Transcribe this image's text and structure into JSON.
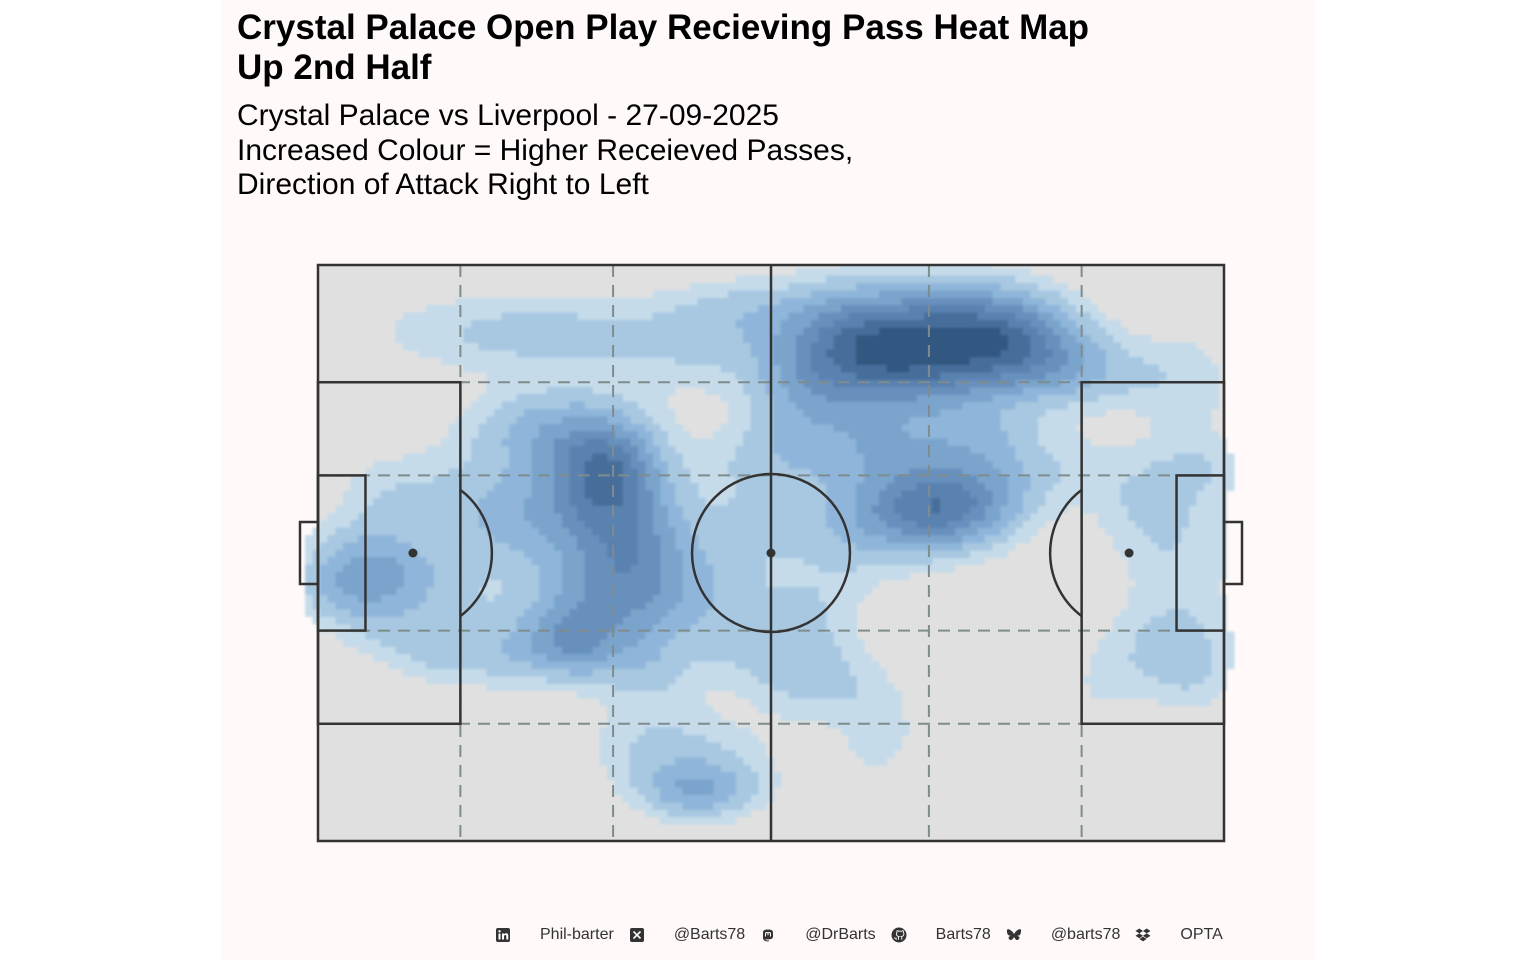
{
  "header": {
    "title_lines": [
      "Crystal Palace Open Play Recieving Pass Heat Map",
      "Up 2nd Half"
    ],
    "subtitle_lines": [
      "Crystal Palace vs Liverpool - 27-09-2025",
      "Increased Colour = Higher Receieved Passes,",
      "Direction of Attack Right to Left"
    ]
  },
  "colors": {
    "panel_background": "#fff9f9",
    "pitch_fill": "#e0e0e0",
    "pitch_lines": "#333333",
    "zone_lines": "#7f8c8d",
    "density_levels": [
      "#c5dbea",
      "#a8c8e1",
      "#8fb6da",
      "#7aa4cc",
      "#6790bd",
      "#5a82b0",
      "#476e9b",
      "#305882"
    ]
  },
  "chart_data": {
    "type": "heatmap",
    "subtype": "2d-density-contour",
    "pitch": "football",
    "x_range": [
      0,
      105
    ],
    "y_range": [
      0,
      68
    ],
    "zones": "juego-de-posicion dashed grid",
    "direction_of_attack": "right-to-left",
    "density_peaks": [
      {
        "x": 69,
        "y": 58,
        "level": 8
      },
      {
        "x": 33,
        "y": 44,
        "level": 6
      },
      {
        "x": 72,
        "y": 39,
        "level": 6
      },
      {
        "x": 5,
        "y": 32,
        "level": 4
      },
      {
        "x": 29,
        "y": 23,
        "level": 3
      },
      {
        "x": 44,
        "y": 6,
        "level": 3
      },
      {
        "x": 58,
        "y": 19,
        "level": 2
      },
      {
        "x": 97,
        "y": 22,
        "level": 2
      }
    ]
  },
  "caption": {
    "items": [
      {
        "icon": "linkedin-icon",
        "text": "Phil-barter"
      },
      {
        "icon": "x-twitter-icon",
        "text": "@Barts78"
      },
      {
        "icon": "mastodon-icon",
        "text": "@DrBarts"
      },
      {
        "icon": "github-icon",
        "text": "Barts78"
      },
      {
        "icon": "bluesky-icon",
        "text": "@barts78"
      },
      {
        "icon": "dropbox-icon",
        "text": "OPTA"
      }
    ]
  }
}
